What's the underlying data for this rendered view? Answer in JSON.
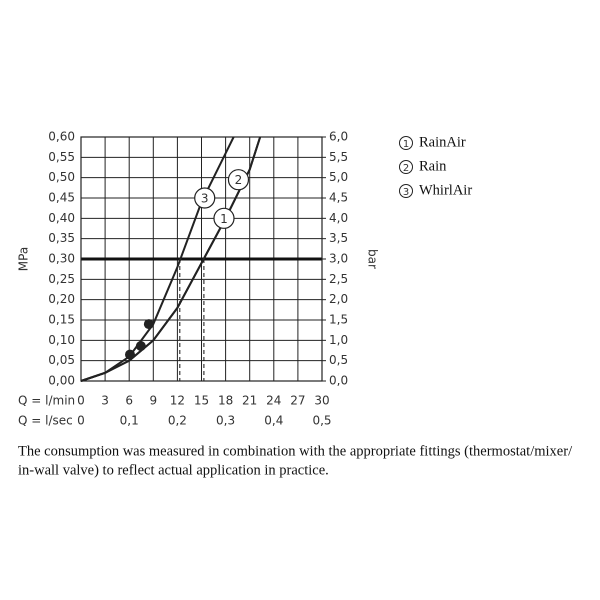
{
  "chart_data": {
    "type": "line",
    "ylabel": "MPa",
    "y2label": "bar",
    "xlabel": "Q = l/min",
    "x2label": "Q = l/sec",
    "xlim": [
      0,
      30
    ],
    "xticks": [
      0,
      3,
      6,
      9,
      12,
      15,
      18,
      21,
      24,
      27,
      30
    ],
    "x2lim": [
      0,
      0.5
    ],
    "x2ticks": [
      0,
      {
        "value": 0.1,
        "label": "0,1"
      },
      {
        "value": 0.2,
        "label": "0,2"
      },
      {
        "value": 0.3,
        "label": "0,3"
      },
      {
        "value": 0.4,
        "label": "0,4"
      },
      {
        "value": 0.5,
        "label": "0,5"
      }
    ],
    "ylim": [
      0,
      0.6
    ],
    "yticks": [
      {
        "value": 0,
        "label": "0,00"
      },
      {
        "value": 0.05,
        "label": "0,05"
      },
      {
        "value": 0.1,
        "label": "0,10"
      },
      {
        "value": 0.15,
        "label": "0,15"
      },
      {
        "value": 0.2,
        "label": "0,20"
      },
      {
        "value": 0.25,
        "label": "0,25"
      },
      {
        "value": 0.3,
        "label": "0,30"
      },
      {
        "value": 0.35,
        "label": "0,35"
      },
      {
        "value": 0.4,
        "label": "0,40"
      },
      {
        "value": 0.45,
        "label": "0,45"
      },
      {
        "value": 0.5,
        "label": "0,50"
      },
      {
        "value": 0.55,
        "label": "0,55"
      },
      {
        "value": 0.6,
        "label": "0,60"
      }
    ],
    "y2lim": [
      0,
      6
    ],
    "y2ticks": [
      {
        "value": 0,
        "label": "0,0"
      },
      {
        "value": 0.5,
        "label": "0,5"
      },
      {
        "value": 1,
        "label": "1,0"
      },
      {
        "value": 1.5,
        "label": "1,5"
      },
      {
        "value": 2,
        "label": "2,0"
      },
      {
        "value": 2.5,
        "label": "2,5"
      },
      {
        "value": 3,
        "label": "3,0"
      },
      {
        "value": 3.5,
        "label": "3,5"
      },
      {
        "value": 4,
        "label": "4,0"
      },
      {
        "value": 4.5,
        "label": "4,5"
      },
      {
        "value": 5,
        "label": "5,0"
      },
      {
        "value": 5.5,
        "label": "5,5"
      },
      {
        "value": 6,
        "label": "6,0"
      }
    ],
    "grid": true,
    "color": "#222222",
    "reference_y": 0.3,
    "reference_x": [
      12.3,
      15.3
    ],
    "series": [
      {
        "name": "RainAir",
        "marker_label": "1",
        "marker_x": 17.8,
        "marker_y": 0.4,
        "x": [
          0,
          3,
          6,
          9,
          12,
          15,
          18,
          21,
          22.3
        ],
        "values": [
          0,
          0.02,
          0.05,
          0.1,
          0.18,
          0.29,
          0.4,
          0.52,
          0.6
        ]
      },
      {
        "name": "Rain",
        "marker_label": "2",
        "marker_x": 19.6,
        "marker_y": 0.495,
        "x": [
          0,
          3,
          6,
          9,
          12,
          15,
          18,
          21,
          22.3
        ],
        "values": [
          0,
          0.02,
          0.05,
          0.1,
          0.18,
          0.29,
          0.4,
          0.52,
          0.6
        ]
      },
      {
        "name": "WhirlAir",
        "marker_label": "3",
        "marker_x": 15.4,
        "marker_y": 0.45,
        "x": [
          0,
          3,
          6,
          9,
          12,
          15,
          18,
          19
        ],
        "values": [
          0,
          0.02,
          0.06,
          0.14,
          0.28,
          0.44,
          0.56,
          0.6
        ]
      }
    ],
    "points": {
      "x": [
        6.1,
        7.45,
        8.45
      ],
      "values": [
        0.065,
        0.086,
        0.14
      ]
    }
  },
  "caption": [
    "The consumption was measured in combination with the appropriate fittings (thermostat/mixer/",
    "in-wall valve) to reflect actual application in practice."
  ]
}
